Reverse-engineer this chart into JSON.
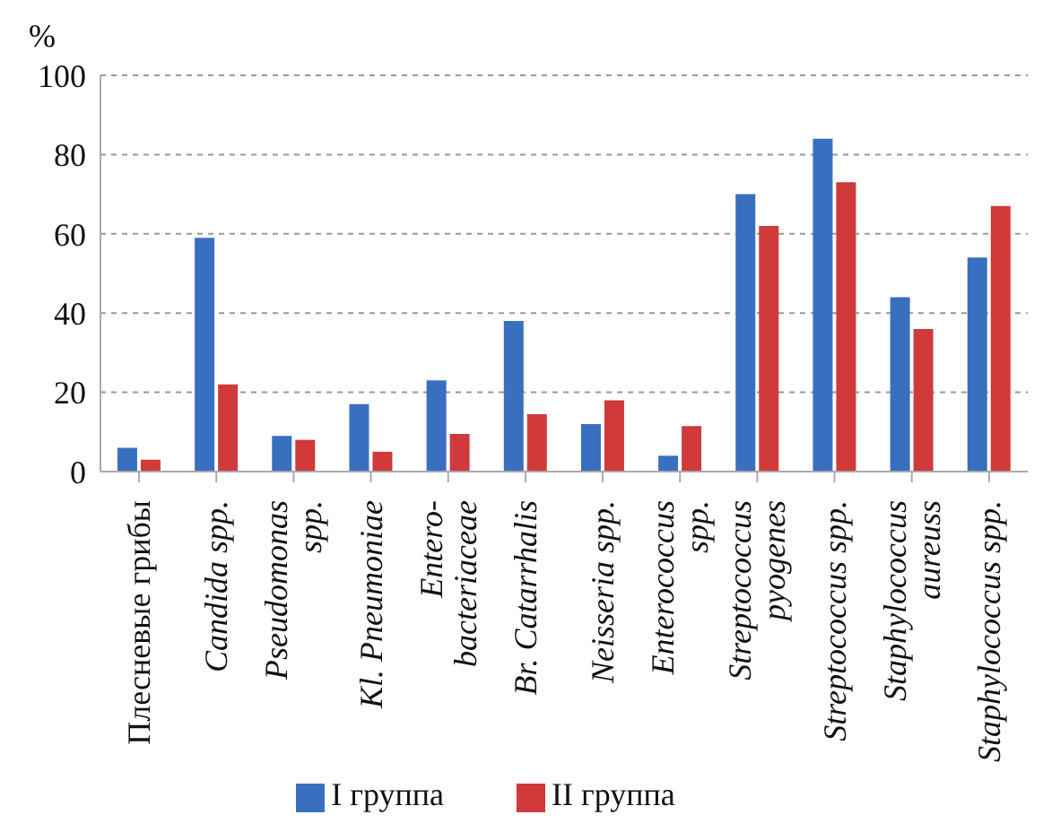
{
  "chart_data": {
    "type": "bar",
    "ylabel": "%",
    "categories": [
      "Плесневые грибы",
      "Candida spp.",
      "Pseudomonas\nspp.",
      "Kl. Pneumoniae",
      "Entero-\nbacteriaceae",
      "Br. Catarrhalis",
      "Neisseria spp.",
      "Enterococcus\nspp.",
      "Streptococcus\npyogenes",
      "Streptococcus spp.",
      "Staphylococcus\naureuss",
      "Staphylococcus spp."
    ],
    "series": [
      {
        "name": "I группа",
        "color": "#3a6fbf",
        "values": [
          6,
          59,
          9,
          17,
          23,
          38,
          12,
          4,
          70,
          84,
          44,
          54
        ]
      },
      {
        "name": "II группа",
        "color": "#d03a3a",
        "values": [
          3,
          22,
          8,
          5,
          9.5,
          14.5,
          18,
          11.5,
          62,
          73,
          36,
          67
        ]
      }
    ],
    "ylim": [
      0,
      100
    ],
    "yticks": [
      0,
      20,
      40,
      60,
      80,
      100
    ],
    "grid": "y",
    "legend": "bottom"
  }
}
